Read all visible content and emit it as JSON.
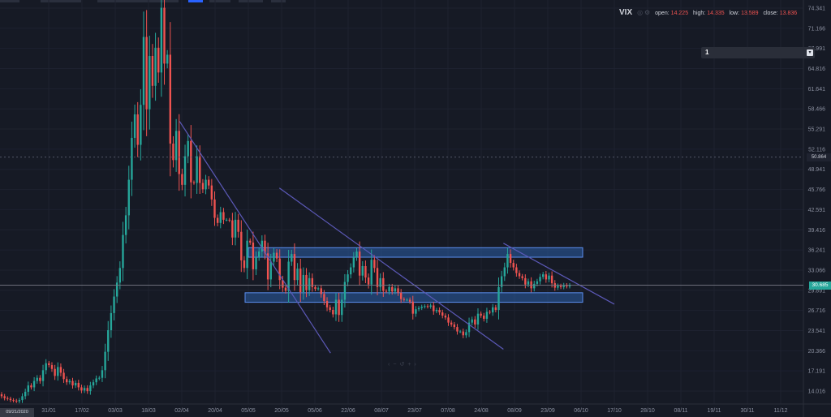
{
  "legend": {
    "symbol": "VIX",
    "open_label": "open:",
    "open": "14.225",
    "high_label": "high:",
    "high": "14.335",
    "low_label": "low:",
    "low": "13.589",
    "close_label": "close:",
    "close": "13.836"
  },
  "interval": {
    "value": "1",
    "icon": "chevron-down-icon"
  },
  "crosshair": {
    "date_label": "09/21/2020",
    "price_label": "50.864",
    "price": 50.864
  },
  "last_price_label": "30.685",
  "colors": {
    "background": "#161a25",
    "up": "#26a69a",
    "down": "#ef5350",
    "zone_fill": "#2b5ea8",
    "zone_border": "#5b8ef0",
    "trendline": "#5c59b8"
  },
  "chart_data": {
    "type": "candlestick",
    "symbol": "VIX",
    "x_ticks": [
      "31/01",
      "17/02",
      "03/03",
      "18/03",
      "02/04",
      "20/04",
      "05/05",
      "20/05",
      "05/06",
      "22/06",
      "08/07",
      "23/07",
      "07/08",
      "24/08",
      "08/09",
      "23/09",
      "06/10",
      "17/10",
      "28/10",
      "08/11",
      "19/11",
      "30/11",
      "11/12"
    ],
    "y_ticks": [
      74.341,
      71.166,
      67.991,
      64.816,
      61.641,
      58.466,
      55.291,
      52.116,
      48.941,
      45.766,
      42.591,
      39.416,
      36.241,
      33.066,
      29.891,
      26.716,
      23.541,
      20.366,
      17.191,
      14.016
    ],
    "y_range": [
      12.5,
      76.0
    ],
    "last_price": 30.685,
    "zones": [
      {
        "name": "resistance",
        "low": 35.1,
        "high": 36.6
      },
      {
        "name": "support",
        "low": 28.0,
        "high": 29.5
      }
    ],
    "trendlines": [
      {
        "from": [
          "01/04",
          56.5
        ],
        "to": [
          "13/06",
          20.0
        ]
      },
      {
        "from": [
          "19/05",
          46.0
        ],
        "to": [
          "03/09",
          20.6
        ]
      },
      {
        "from": [
          "03/09",
          37.3
        ],
        "to": [
          "17/10",
          27.7
        ]
      }
    ],
    "closes": [
      13.2,
      12.9,
      12.8,
      12.6,
      12.5,
      12.4,
      12.6,
      13.2,
      13.9,
      14.9,
      14.6,
      15.6,
      16.1,
      15.6,
      17.3,
      18.4,
      18.1,
      17.5,
      16.4,
      17.8,
      16.9,
      15.9,
      15.4,
      15.6,
      14.9,
      15.3,
      14.6,
      14.1,
      14.5,
      14.0,
      14.9,
      15.4,
      16.0,
      16.1,
      17.3,
      20.2,
      23.6,
      26.3,
      28.9,
      31.1,
      33.4,
      38.6,
      41.7,
      47.3,
      53.9,
      57.6,
      52.8,
      59.1,
      69.8,
      58.4,
      66.8,
      62.1,
      68.1,
      64.2,
      74.4,
      65.6,
      67.0,
      53.0,
      50.4,
      55.0,
      48.2,
      46.5,
      51.0,
      53.4,
      46.9,
      46.8,
      51.0,
      46.8,
      45.8,
      47.3,
      46.4,
      44.2,
      41.3,
      40.5,
      42.2,
      41.0,
      41.0,
      40.9,
      38.2,
      41.0,
      39.1,
      34.6,
      33.4,
      37.7,
      37.4,
      33.2,
      35.1,
      36.0,
      37.7,
      35.7,
      31.6,
      34.4,
      35.8,
      34.9,
      31.5,
      30.3,
      29.8,
      34.4,
      35.6,
      31.5,
      33.3,
      29.6,
      32.3,
      29.9,
      31.8,
      30.4,
      30.1,
      30.2,
      29.3,
      28.2,
      27.2,
      26.8,
      26.1,
      28.4,
      26.0,
      28.4,
      31.2,
      32.4,
      33.5,
      35.1,
      36.0,
      32.2,
      33.7,
      31.9,
      30.8,
      34.7,
      33.4,
      30.4,
      31.8,
      29.8,
      29.7,
      30.4,
      29.7,
      30.2,
      29.5,
      28.5,
      28.4,
      28.4,
      28.1,
      26.2,
      26.9,
      27.1,
      27.3,
      27.4,
      27.3,
      27.5,
      26.6,
      26.8,
      26.4,
      25.9,
      25.6,
      24.8,
      24.5,
      24.1,
      23.4,
      23.4,
      22.8,
      23.3,
      24.8,
      25.3,
      24.5,
      26.2,
      25.9,
      25.4,
      26.5,
      26.4,
      27.2,
      26.8,
      30.4,
      32.1,
      33.5,
      35.6,
      34.2,
      33.5,
      32.6,
      32.1,
      31.8,
      30.8,
      31.3,
      30.2,
      30.9,
      31.3,
      32.0,
      32.4,
      31.6,
      32.2,
      31.0,
      30.3,
      30.6,
      30.4,
      30.7,
      30.5,
      30.7
    ]
  }
}
